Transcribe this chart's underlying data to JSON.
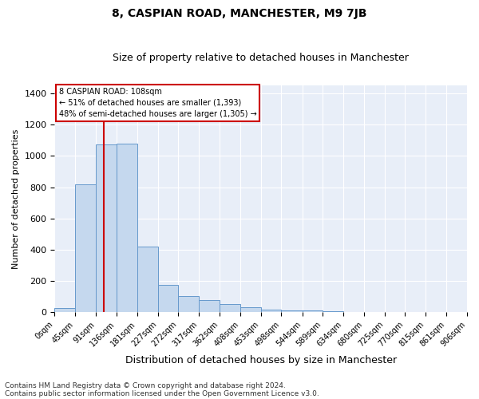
{
  "title": "8, CASPIAN ROAD, MANCHESTER, M9 7JB",
  "subtitle": "Size of property relative to detached houses in Manchester",
  "xlabel": "Distribution of detached houses by size in Manchester",
  "ylabel": "Number of detached properties",
  "bin_edges": [
    0,
    45,
    91,
    136,
    181,
    227,
    272,
    317,
    362,
    408,
    453,
    498,
    544,
    589,
    634,
    680,
    725,
    770,
    815,
    861,
    906
  ],
  "bar_heights": [
    30,
    820,
    1075,
    1080,
    420,
    175,
    105,
    80,
    55,
    35,
    20,
    15,
    10,
    5,
    3,
    2,
    2,
    1,
    1,
    1
  ],
  "bar_color": "#c5d8ee",
  "bar_edge_color": "#6699cc",
  "red_line_x": 108,
  "annotation_title": "8 CASPIAN ROAD: 108sqm",
  "annotation_line1": "← 51% of detached houses are smaller (1,393)",
  "annotation_line2": "48% of semi-detached houses are larger (1,305) →",
  "annotation_box_color": "#cc0000",
  "ylim": [
    0,
    1450
  ],
  "footer1": "Contains HM Land Registry data © Crown copyright and database right 2024.",
  "footer2": "Contains public sector information licensed under the Open Government Licence v3.0.",
  "bg_color": "#e8eef8",
  "grid_color": "#ffffff",
  "title_fontsize": 10,
  "subtitle_fontsize": 9,
  "ylabel_fontsize": 8,
  "xlabel_fontsize": 9,
  "tick_fontsize": 7,
  "footer_fontsize": 6.5
}
